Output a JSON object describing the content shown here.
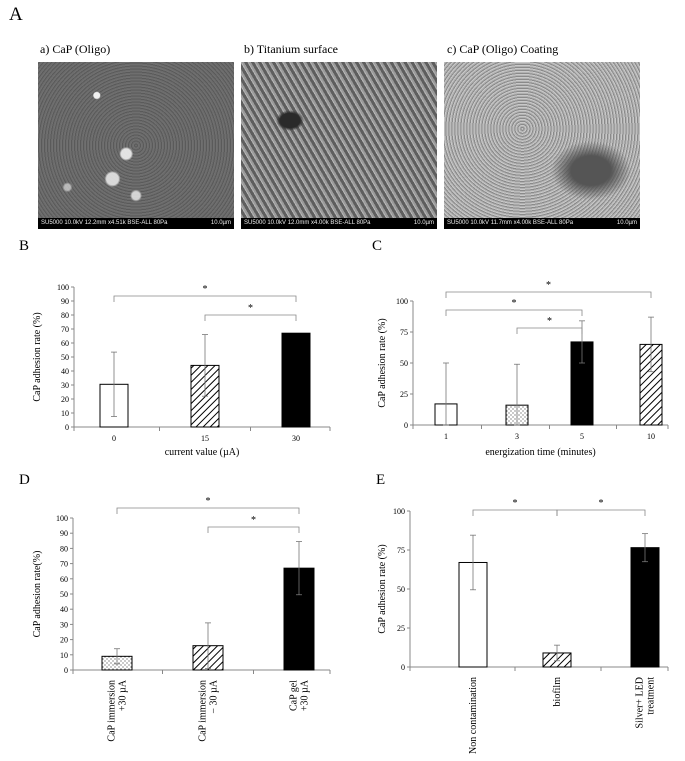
{
  "panel_letters": {
    "A": "A",
    "B": "B",
    "C": "C",
    "D": "D",
    "E": "E"
  },
  "sem_images": [
    {
      "title": "a) CaP (Oligo)",
      "meta": "SU5000 10.0kV 12.2mm x4.51k BSE-ALL 80Pa",
      "scale": "10.0µm"
    },
    {
      "title": "b) Titanium surface",
      "meta": "SU5000 10.0kV 12.0mm x4.00k BSE-ALL 80Pa",
      "scale": "10.0µm"
    },
    {
      "title": "c) CaP (Oligo) Coating",
      "meta": "SU5000 10.0kV 11.7mm x4.00k BSE-ALL 80Pa",
      "scale": "10.0µm"
    }
  ],
  "chart_data": [
    {
      "panel": "B",
      "type": "bar",
      "categories": [
        "0",
        "15",
        "30"
      ],
      "values": [
        30.5,
        44,
        67
      ],
      "errors": [
        23,
        22,
        0
      ],
      "fills": [
        "white",
        "hatch",
        "black"
      ],
      "xlabel": "current value (µA)",
      "ylabel": "CaP adhesion rate (%)",
      "ylim": [
        0,
        100
      ],
      "yticks": [
        0,
        10,
        20,
        30,
        40,
        50,
        60,
        70,
        80,
        90,
        100
      ],
      "significance": [
        {
          "from": 0,
          "to": 2,
          "label": "*"
        },
        {
          "from": 1,
          "to": 2,
          "label": "*"
        }
      ]
    },
    {
      "panel": "C",
      "type": "bar",
      "categories": [
        "1",
        "3",
        "5",
        "10"
      ],
      "values": [
        17,
        16,
        67,
        65
      ],
      "errors": [
        33,
        33,
        17,
        22
      ],
      "fills": [
        "white",
        "dots",
        "black",
        "hatch"
      ],
      "xlabel": "energization time (minutes)",
      "ylabel": "CaP adhesion rate (%)",
      "ylim": [
        0,
        100
      ],
      "yticks": [
        0,
        25,
        50,
        75,
        100
      ],
      "significance": [
        {
          "from": 0,
          "to": 3,
          "label": "*"
        },
        {
          "from": 0,
          "to": 2,
          "label": "*"
        },
        {
          "from": 1,
          "to": 2,
          "label": "*"
        }
      ]
    },
    {
      "panel": "D",
      "type": "bar",
      "categories": [
        [
          "CaP immersion",
          "+30 µA"
        ],
        [
          "CaP immersion",
          "− 30 µA"
        ],
        [
          "CaP gel",
          "+30 µA"
        ]
      ],
      "values": [
        9,
        16,
        67
      ],
      "errors": [
        5,
        15,
        17.5
      ],
      "fills": [
        "dots",
        "hatch",
        "black"
      ],
      "xlabel": "",
      "ylabel": "CaP adhesion rate(%)",
      "ylim": [
        0,
        100
      ],
      "yticks": [
        0,
        10,
        20,
        30,
        40,
        50,
        60,
        70,
        80,
        90,
        100
      ],
      "significance": [
        {
          "from": 0,
          "to": 2,
          "label": "*"
        },
        {
          "from": 1,
          "to": 2,
          "label": "*"
        }
      ]
    },
    {
      "panel": "E",
      "type": "bar",
      "categories": [
        [
          "Non contamination"
        ],
        [
          "biofilm"
        ],
        [
          "Silver+ LED",
          "treatment"
        ]
      ],
      "values": [
        67,
        9,
        76.5
      ],
      "errors": [
        17.5,
        5,
        9
      ],
      "fills": [
        "white",
        "hatch",
        "black"
      ],
      "xlabel": "",
      "ylabel": "CaP adhesion rate (%)",
      "ylim": [
        0,
        100
      ],
      "yticks": [
        0,
        25,
        50,
        75,
        100
      ],
      "significance": [
        {
          "from": 0,
          "to": 1,
          "label": "*"
        },
        {
          "from": 1,
          "to": 2,
          "label": "*"
        }
      ]
    }
  ]
}
